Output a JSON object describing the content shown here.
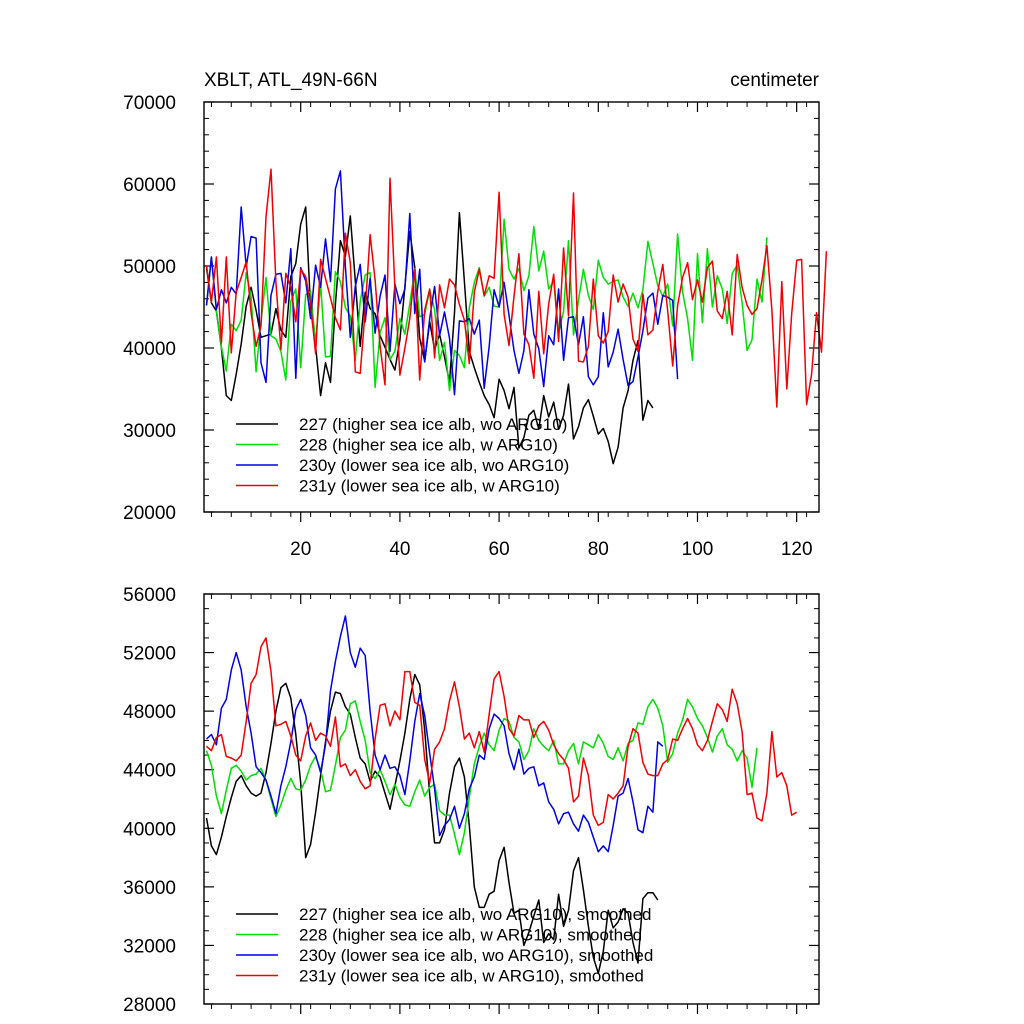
{
  "chart_data": [
    {
      "type": "line",
      "title": "XBLT, ATL_49N-66N",
      "units": "centimeter",
      "xlabel": "",
      "ylabel": "",
      "xlim": [
        0.5,
        124.5
      ],
      "ylim": [
        20000,
        70000
      ],
      "x_ticks": [
        20,
        40,
        60,
        80,
        100,
        120
      ],
      "y_ticks": [
        20000,
        30000,
        40000,
        50000,
        60000,
        70000
      ],
      "y_tick_labels": [
        "20000",
        "30000",
        "40000",
        "50000",
        "60000",
        "70000"
      ],
      "x_tick_labels": [
        "20",
        "40",
        "60",
        "80",
        "100",
        "120"
      ],
      "legend_position": "bottom-left",
      "series": [
        {
          "name": "227 (higher sea ice alb, wo ARG10)",
          "color": "#000000",
          "values": [
            49800,
            45500,
            44500,
            40000,
            34200,
            33600,
            36800,
            40500,
            45100,
            47400,
            44600,
            41300,
            41500,
            41700,
            44800,
            42200,
            41300,
            48700,
            50300,
            55100,
            57200,
            44800,
            40200,
            34200,
            38200,
            35800,
            45300,
            53100,
            51200,
            56100,
            48200,
            40200,
            46800,
            44800,
            44200,
            41500,
            40100,
            38600,
            37300,
            41000,
            47500,
            54200,
            49800,
            41200,
            38400,
            43200,
            39800,
            41700,
            38900,
            35800,
            44300,
            56500,
            48100,
            39600,
            37600,
            35800,
            34200,
            33100,
            31500,
            36200,
            34800,
            32600,
            35200,
            27800,
            29100,
            31800,
            32400,
            30100,
            34200,
            31600,
            33400,
            30100,
            31800,
            35600,
            28900,
            30400,
            32700,
            33700,
            31700,
            29500,
            30200,
            28600,
            25900,
            27900,
            32700,
            34800,
            38500,
            40900,
            31200,
            33600,
            32700
          ]
        },
        {
          "name": "228 (higher sea ice alb, w ARG10)",
          "color": "#00dd00",
          "values": [
            45200,
            51100,
            44600,
            40100,
            37200,
            42900,
            42100,
            43400,
            49200,
            46200,
            37100,
            43200,
            48600,
            41500,
            41100,
            39600,
            36100,
            45700,
            47200,
            37600,
            46500,
            46900,
            40600,
            47800,
            38900,
            39000,
            49300,
            48100,
            44900,
            43900,
            38500,
            45700,
            48900,
            49200,
            35200,
            41900,
            43700,
            38600,
            39600,
            43600,
            41700,
            45400,
            49700,
            43800,
            44100,
            47100,
            44700,
            38500,
            40700,
            34800,
            39700,
            39100,
            37600,
            44900,
            48000,
            49800,
            46300,
            47400,
            45100,
            45000,
            55700,
            49600,
            48400,
            49700,
            47000,
            48800,
            54800,
            49400,
            51800,
            47200,
            48100,
            41900,
            44500,
            53100,
            41600,
            45800,
            49600,
            46400,
            44700,
            50700,
            48600,
            47800,
            48100,
            48300,
            46200,
            45100,
            46700,
            44900,
            47100,
            53000,
            50300,
            47600,
            46300,
            47800,
            42700,
            53900,
            46800,
            43600,
            38500,
            51500,
            43100,
            52100,
            45000,
            48800,
            47200,
            43000,
            49100,
            50100,
            45500,
            39700,
            41000,
            48400,
            45600,
            53500
          ]
        },
        {
          "name": "230y (lower sea ice alb, wo ARG10)",
          "color": "#0000dd",
          "values": [
            45200,
            51100,
            44700,
            47100,
            45500,
            47400,
            46600,
            57200,
            49900,
            53600,
            53400,
            38200,
            35800,
            46400,
            49000,
            49100,
            45500,
            52100,
            36300,
            49800,
            48200,
            43600,
            50100,
            47400,
            53300,
            48100,
            59400,
            61600,
            49900,
            41300,
            47500,
            50200,
            43200,
            48500,
            41800,
            46300,
            48900,
            39600,
            47800,
            45400,
            47200,
            56400,
            44200,
            49600,
            38300,
            43600,
            47500,
            41500,
            44400,
            41200,
            34300,
            43300,
            43200,
            43600,
            41700,
            43400,
            35100,
            40200,
            47100,
            45000,
            48000,
            44000,
            39700,
            36900,
            39700,
            47100,
            41700,
            39900,
            35300,
            41500,
            40400,
            47200,
            38500,
            43700,
            43800,
            40400,
            43800,
            36500,
            35500,
            36500,
            44300,
            37700,
            39500,
            42300,
            38600,
            35400,
            35900,
            38900,
            42100,
            46100,
            46700,
            42900,
            46400,
            46200,
            45800,
            36200
          ]
        },
        {
          "name": "231y (lower sea ice alb, w ARG10)",
          "color": "#ee0000",
          "values": [
            50100,
            45600,
            51100,
            40600,
            51100,
            39400,
            46800,
            48600,
            50500,
            44300,
            40200,
            42700,
            56000,
            61800,
            48000,
            39800,
            49100,
            47400,
            43200,
            49600,
            48700,
            45400,
            39300,
            50800,
            48500,
            46100,
            43700,
            42200,
            54000,
            50400,
            37100,
            36900,
            44600,
            53800,
            48300,
            40200,
            35500,
            60700,
            47300,
            36700,
            40000,
            43600,
            49600,
            36100,
            44600,
            47200,
            38800,
            47700,
            44900,
            48400,
            47700,
            45300,
            43400,
            38100,
            46800,
            49600,
            46400,
            48800,
            48500,
            59000,
            44100,
            40300,
            46300,
            51500,
            41700,
            40400,
            36300,
            46900,
            39300,
            45400,
            49000,
            40800,
            52200,
            43900,
            58900,
            38400,
            38300,
            40200,
            48400,
            41500,
            40600,
            42000,
            48900,
            45600,
            47800,
            46200,
            41100,
            39600,
            46600,
            41600,
            42200,
            46900,
            50200,
            44500,
            37800,
            45200,
            48600,
            50400,
            45900,
            48300,
            45600,
            49800,
            50600,
            44500,
            43600,
            46900,
            41600,
            51400,
            47400,
            45200,
            44100,
            44800,
            48300,
            52500,
            44600,
            32800,
            48100,
            35000,
            44200,
            50700,
            50800,
            33100,
            36800,
            44300,
            39500,
            51800
          ]
        }
      ]
    },
    {
      "type": "line",
      "title": "",
      "xlabel": "",
      "ylabel": "",
      "xlim": [
        0.5,
        124.5
      ],
      "ylim": [
        28000,
        56000
      ],
      "x_ticks": [
        20,
        40,
        60,
        80,
        100,
        120
      ],
      "y_ticks": [
        28000,
        32000,
        36000,
        40000,
        44000,
        48000,
        52000,
        56000
      ],
      "y_tick_labels": [
        "28000",
        "32000",
        "36000",
        "40000",
        "44000",
        "48000",
        "52000",
        "56000"
      ],
      "legend_position": "bottom-left",
      "series": [
        {
          "name": "227 (higher sea ice alb, wo ARG10), smoothed",
          "color": "#000000",
          "values": [
            40700,
            38800,
            38200,
            39400,
            40800,
            42100,
            43200,
            43600,
            42900,
            42400,
            42200,
            42400,
            43800,
            45800,
            48000,
            49600,
            49900,
            48900,
            46400,
            43100,
            38000,
            38900,
            41100,
            43600,
            45900,
            48000,
            49300,
            49200,
            48300,
            47800,
            46200,
            44800,
            44400,
            43200,
            43900,
            43500,
            42400,
            41300,
            42900,
            44600,
            46500,
            48800,
            50500,
            49800,
            46700,
            42300,
            39000,
            39000,
            39900,
            42400,
            44200,
            44800,
            43500,
            40200,
            36000,
            34600,
            34600,
            35500,
            35700,
            37800,
            38700,
            36300,
            34200,
            34400,
            32000,
            32900,
            34000,
            35100,
            32200,
            32800,
            32400,
            35500,
            33300,
            34400,
            37100,
            38000,
            35800,
            33300,
            31200,
            30100,
            31600,
            34400,
            33200,
            33600,
            34500,
            34200,
            32200,
            30800,
            35200,
            35600,
            35600,
            35100
          ]
        },
        {
          "name": "228 (higher sea ice alb, w ARG10), smoothed",
          "color": "#00dd00",
          "values": [
            45300,
            44300,
            42200,
            41000,
            42600,
            44100,
            44300,
            43900,
            43300,
            43600,
            43700,
            44100,
            43300,
            42000,
            40800,
            41600,
            42600,
            43400,
            42700,
            42600,
            43300,
            44300,
            44900,
            44000,
            42500,
            42600,
            44300,
            46200,
            46700,
            48500,
            48700,
            47300,
            46000,
            43800,
            43400,
            44000,
            43200,
            42300,
            43000,
            42100,
            41600,
            41500,
            42500,
            43300,
            42200,
            42800,
            43000,
            41200,
            40900,
            40900,
            39600,
            38200,
            39700,
            42100,
            44400,
            45600,
            46500,
            45700,
            45300,
            46700,
            47500,
            47300,
            46200,
            45900,
            44700,
            45300,
            46800,
            46000,
            45600,
            45300,
            46000,
            44400,
            44400,
            45300,
            45800,
            44400,
            45900,
            45700,
            45500,
            46400,
            45800,
            44900,
            44700,
            45500,
            44600,
            45800,
            46000,
            47200,
            47100,
            48300,
            48800,
            48200,
            47000,
            44500,
            45100,
            46500,
            47400,
            48800,
            48300,
            47500,
            47000,
            46200,
            45200,
            46300,
            46800,
            45700,
            45400,
            44600,
            45300,
            44800,
            42800,
            45500
          ]
        },
        {
          "name": "230y (lower sea ice alb, wo ARG10), smoothed",
          "color": "#0000dd",
          "values": [
            46100,
            46400,
            45700,
            48200,
            48800,
            50800,
            52000,
            50800,
            48300,
            46500,
            44200,
            43800,
            43300,
            42200,
            41000,
            42900,
            44200,
            45900,
            48100,
            48800,
            47700,
            45500,
            45000,
            43800,
            45700,
            49400,
            51400,
            53100,
            54500,
            52000,
            51000,
            52300,
            51800,
            48000,
            45000,
            44000,
            45000,
            44100,
            44200,
            43600,
            42300,
            44600,
            47300,
            49200,
            47700,
            45100,
            42700,
            39500,
            40200,
            40600,
            41500,
            40000,
            41000,
            42700,
            43500,
            45000,
            44700,
            46800,
            47800,
            47500,
            47000,
            45100,
            44000,
            45400,
            43700,
            44100,
            44200,
            42900,
            43100,
            41800,
            41300,
            40300,
            41000,
            41100,
            40300,
            39800,
            40900,
            40400,
            39400,
            38400,
            38800,
            38400,
            40200,
            42200,
            42400,
            43400,
            41800,
            39900,
            39700,
            41500,
            41100,
            45900,
            45600
          ]
        },
        {
          "name": "231y (lower sea ice alb, w ARG10), smoothed",
          "color": "#ee0000",
          "values": [
            45600,
            45300,
            46200,
            46400,
            44900,
            44800,
            44600,
            45000,
            47300,
            49900,
            50500,
            52400,
            53000,
            50700,
            47000,
            47100,
            47300,
            46300,
            45000,
            44600,
            46300,
            47200,
            46000,
            46500,
            46300,
            45600,
            47600,
            44200,
            44400,
            43600,
            44000,
            43200,
            42700,
            42900,
            46100,
            48400,
            48500,
            47000,
            48000,
            47400,
            50700,
            50700,
            48600,
            48400,
            44700,
            43100,
            45400,
            45900,
            46800,
            48700,
            50000,
            48300,
            46100,
            46500,
            45500,
            46600,
            45200,
            47800,
            50200,
            50700,
            49000,
            46800,
            46300,
            47700,
            47400,
            47400,
            46200,
            47000,
            47300,
            46700,
            45700,
            45100,
            44700,
            44100,
            41800,
            42200,
            44800,
            43600,
            40900,
            40200,
            40400,
            42300,
            42000,
            42400,
            42900,
            45600,
            46800,
            46500,
            44500,
            43700,
            43600,
            43600,
            44400,
            44700,
            46100,
            46000,
            46800,
            47500,
            46800,
            45700,
            45300,
            46000,
            47300,
            48500,
            48100,
            47300,
            49500,
            48500,
            46600,
            42300,
            42400,
            40700,
            40500,
            42400,
            46600,
            43500,
            43800,
            42900,
            40900,
            41100
          ]
        }
      ]
    }
  ]
}
